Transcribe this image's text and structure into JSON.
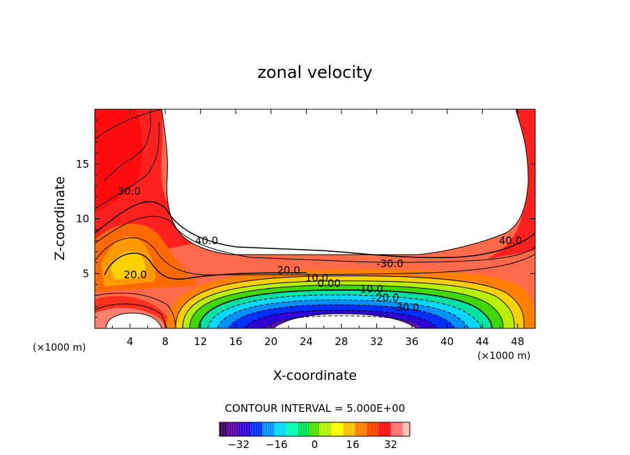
{
  "chart_data": {
    "type": "heatmap",
    "subtype": "filled-contour",
    "title": "zonal velocity",
    "xlabel": "X-coordinate",
    "ylabel": "Z-coordinate",
    "x_unit": "(×1000 m)",
    "y_unit": "(×1000 m)",
    "xlim": [
      0,
      50
    ],
    "ylim": [
      0,
      20
    ],
    "x_ticks": [
      4,
      8,
      12,
      16,
      20,
      24,
      28,
      32,
      36,
      40,
      44,
      48
    ],
    "y_ticks": [
      5,
      10,
      15
    ],
    "contour_interval_text": "CONTOUR INTERVAL = 5.000E+00",
    "contour_labels": [
      {
        "text": "30.0",
        "x": 3.9,
        "z": 12.5
      },
      {
        "text": "40.0",
        "x": 12.7,
        "z": 8.0
      },
      {
        "text": "20.0",
        "x": 4.6,
        "z": 4.9
      },
      {
        "text": "20.0",
        "x": 22.0,
        "z": 5.3
      },
      {
        "text": "10.0",
        "x": 25.2,
        "z": 4.6
      },
      {
        "text": "0.00",
        "x": 26.6,
        "z": 4.1
      },
      {
        "text": "-30.0",
        "x": 33.5,
        "z": 5.9
      },
      {
        "text": "-10.0",
        "x": 31.2,
        "z": 3.6
      },
      {
        "text": "-20.0",
        "x": 33.0,
        "z": 2.8
      },
      {
        "text": "-30.0",
        "x": 35.3,
        "z": 1.9
      },
      {
        "text": "40.0",
        "x": 47.2,
        "z": 8.0
      }
    ],
    "colorbar": {
      "range": [
        -40,
        40
      ],
      "ticks": [
        -32,
        -16,
        0,
        16,
        32
      ],
      "colors": [
        "#3a0058",
        "#5a00a0",
        "#3000d8",
        "#0030ff",
        "#0090ff",
        "#00d8ff",
        "#00ffb0",
        "#00e050",
        "#50e000",
        "#b0f000",
        "#ffff00",
        "#ffc000",
        "#ff8000",
        "#ff4000",
        "#ff1010",
        "#ff7070",
        "#ffc0b0"
      ]
    }
  }
}
